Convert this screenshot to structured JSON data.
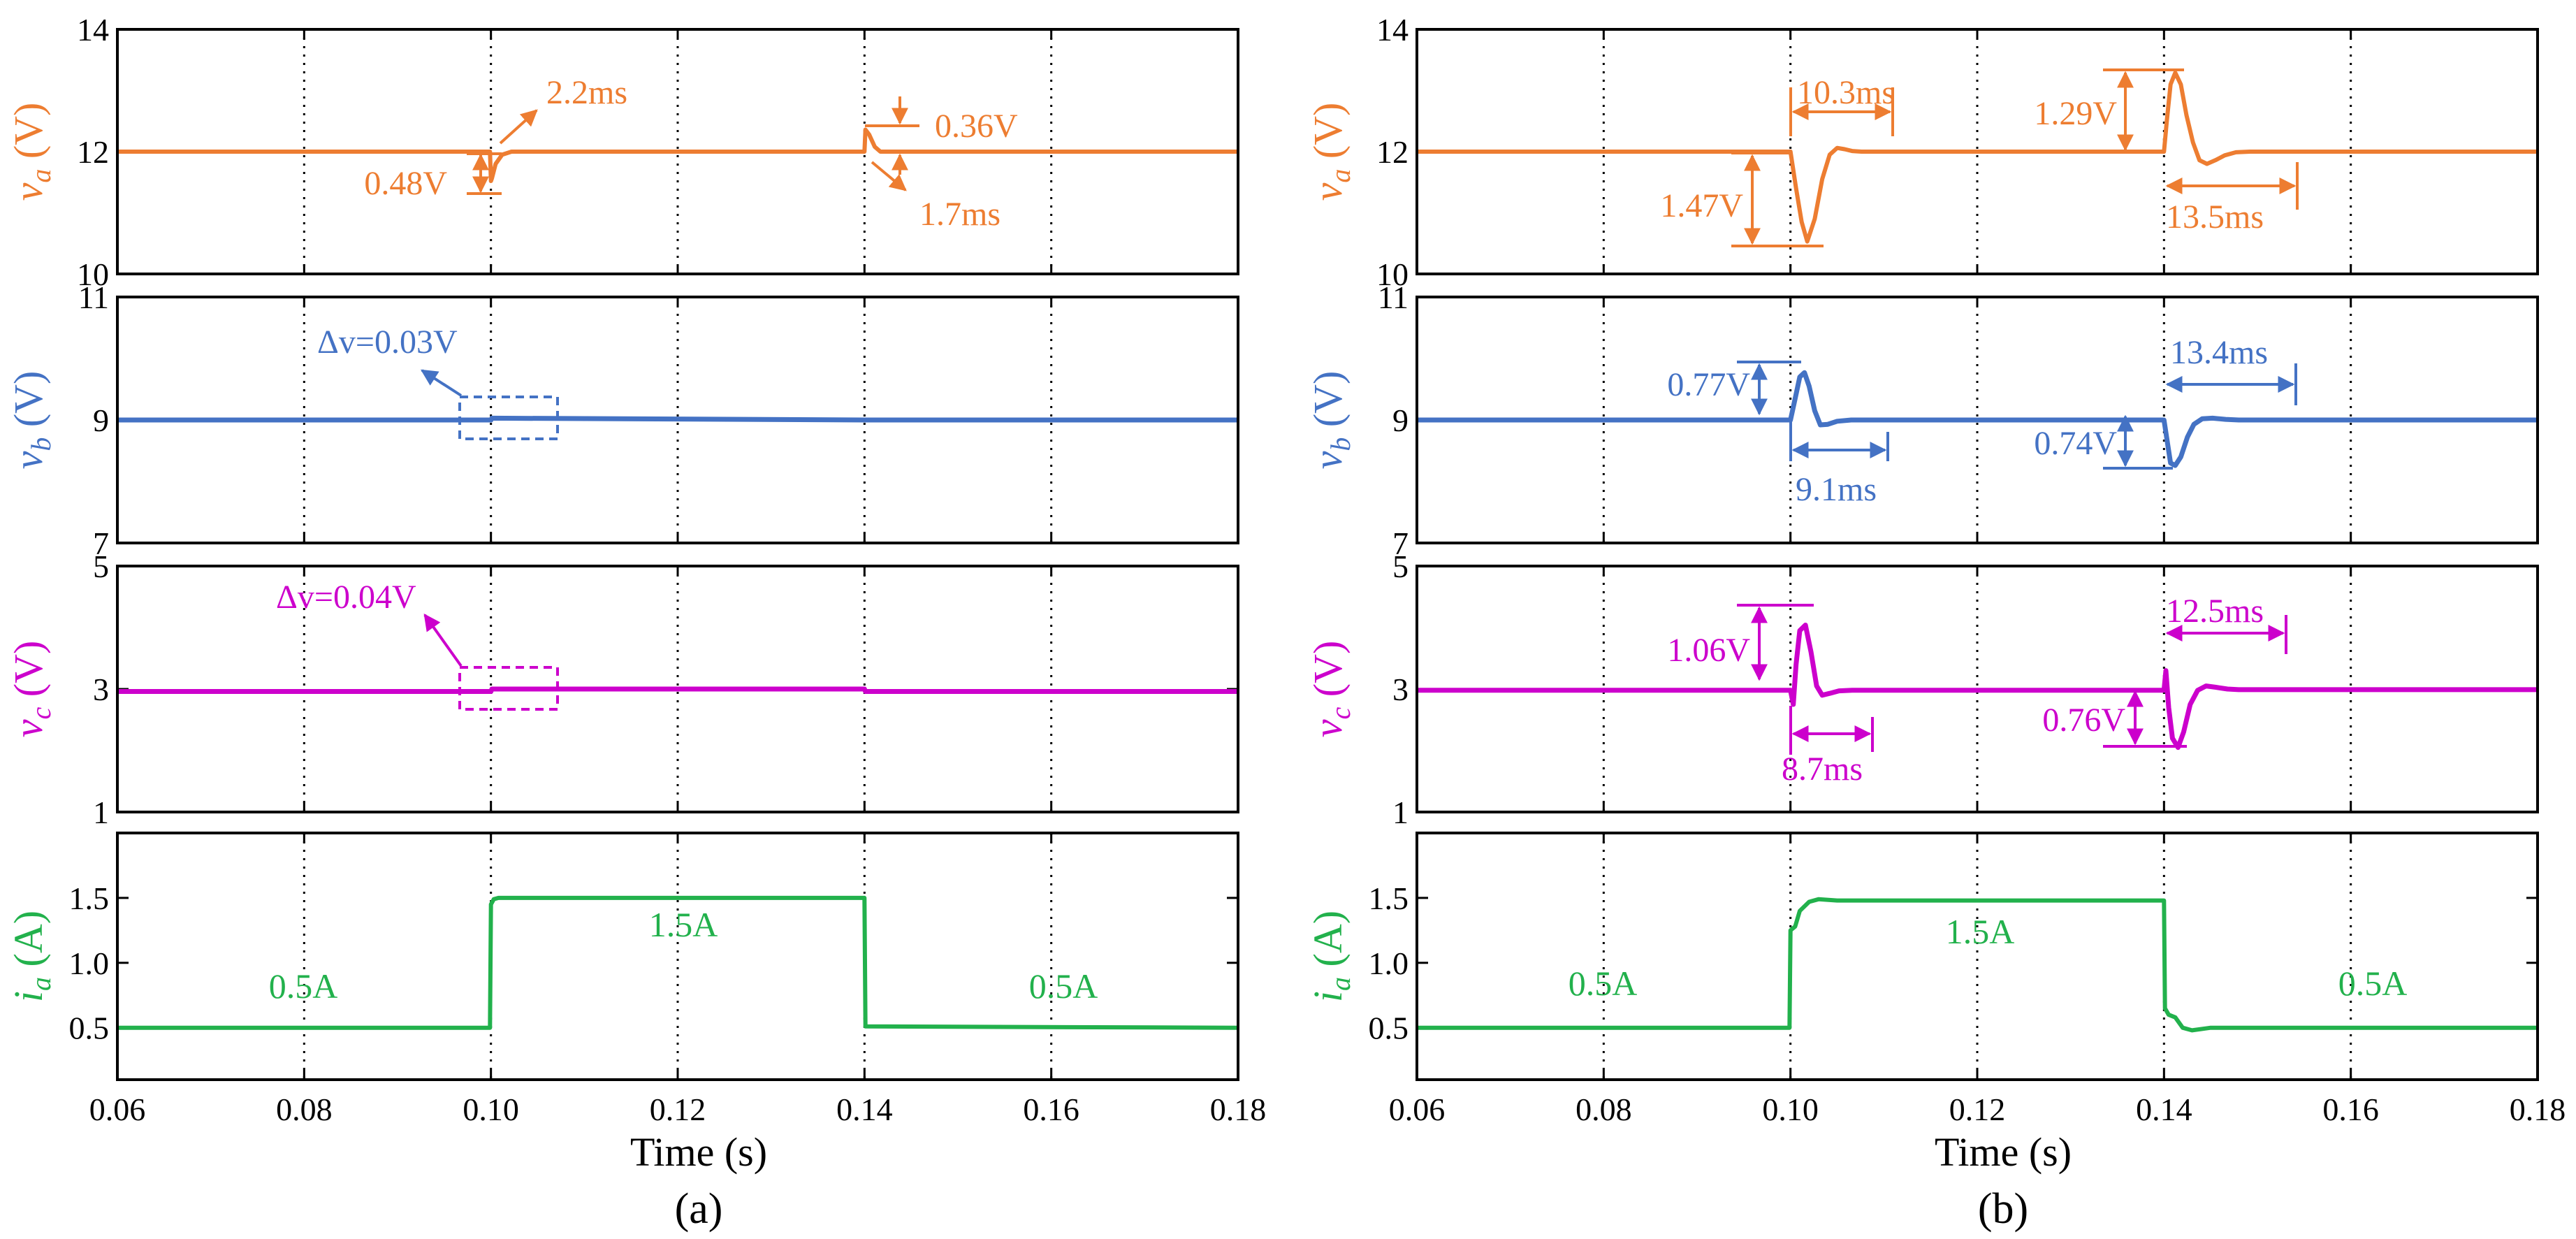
{
  "figure": {
    "panel_labels": [
      "(a)",
      "(b)"
    ],
    "xlabel": "Time (s)",
    "x_ticks": [
      "0.06",
      "0.08",
      "0.10",
      "0.12",
      "0.14",
      "0.16",
      "0.18"
    ]
  },
  "colors": {
    "va": "#ED7D31",
    "vb": "#4472C4",
    "vc": "#CC00CC",
    "ia": "#22B14C",
    "frame": "#000000"
  },
  "chart_data": [
    {
      "type": "line",
      "panel": "(a)",
      "xlim": [
        0.06,
        0.18
      ],
      "xlabel": "Time (s)",
      "subplots": [
        {
          "id": "va",
          "ylabel": "va (V)",
          "ylabel_base": "v",
          "ylabel_sub": "a",
          "ylabel_unit": "(V)",
          "ylim": [
            10,
            14
          ],
          "yticks": [
            "10",
            "12",
            "14"
          ],
          "series": {
            "x": [
              0.06,
              0.0999,
              0.1,
              0.1001,
              0.1005,
              0.1012,
              0.1022,
              0.14,
              0.1401,
              0.1405,
              0.1411,
              0.1417,
              0.18
            ],
            "y": [
              12.0,
              12.0,
              11.52,
              11.56,
              11.8,
              11.95,
              12.0,
              12.0,
              12.36,
              12.28,
              12.08,
              12.0,
              12.0
            ]
          },
          "annotations": [
            "0.48V",
            "2.2ms",
            "0.36V",
            "1.7ms"
          ]
        },
        {
          "id": "vb",
          "ylabel": "vb (V)",
          "ylabel_base": "v",
          "ylabel_sub": "b",
          "ylabel_unit": "(V)",
          "ylim": [
            7,
            11
          ],
          "yticks": [
            "7",
            "9",
            "11"
          ],
          "series": {
            "x": [
              0.06,
              0.1,
              0.1001,
              0.14,
              0.1401,
              0.18
            ],
            "y": [
              9.0,
              9.0,
              9.03,
              9.0,
              9.0,
              9.0
            ]
          },
          "annotations": [
            "Δv=0.03V"
          ]
        },
        {
          "id": "vc",
          "ylabel": "vc (V)",
          "ylabel_base": "v",
          "ylabel_sub": "c",
          "ylabel_unit": "(V)",
          "ylim": [
            1,
            5
          ],
          "yticks": [
            "1",
            "3",
            "5"
          ],
          "series": {
            "x": [
              0.06,
              0.1,
              0.1001,
              0.14,
              0.1401,
              0.18
            ],
            "y": [
              2.96,
              2.96,
              3.0,
              3.0,
              2.96,
              2.96
            ]
          },
          "annotations": [
            "Δv=0.04V"
          ]
        },
        {
          "id": "ia",
          "ylabel": "ia (A)",
          "ylabel_base": "i",
          "ylabel_sub": "a",
          "ylabel_unit": "(A)",
          "ylim": [
            0.1,
            2.0
          ],
          "yticks": [
            "0.5",
            "1.0",
            "1.5"
          ],
          "series": {
            "x": [
              0.06,
              0.0999,
              0.1,
              0.1003,
              0.1008,
              0.14,
              0.1401,
              0.18
            ],
            "y": [
              0.5,
              0.5,
              1.45,
              1.49,
              1.5,
              1.5,
              0.51,
              0.5
            ]
          },
          "annotations": [
            "0.5A",
            "1.5A",
            "0.5A"
          ]
        }
      ]
    },
    {
      "type": "line",
      "panel": "(b)",
      "xlim": [
        0.06,
        0.18
      ],
      "xlabel": "Time (s)",
      "subplots": [
        {
          "id": "va",
          "ylabel": "va (V)",
          "ylabel_base": "v",
          "ylabel_sub": "a",
          "ylabel_unit": "(V)",
          "ylim": [
            10,
            14
          ],
          "yticks": [
            "10",
            "12",
            "14"
          ],
          "series": {
            "x": [
              0.06,
              0.1,
              0.1006,
              0.1012,
              0.1018,
              0.1026,
              0.1034,
              0.1042,
              0.105,
              0.1058,
              0.1066,
              0.1076,
              0.1088,
              0.1103,
              0.14,
              0.1403,
              0.1407,
              0.1412,
              0.1418,
              0.1424,
              0.1431,
              0.1438,
              0.1446,
              0.1455,
              0.1465,
              0.1477,
              0.1492,
              0.1535,
              0.18
            ],
            "y": [
              12.0,
              12.0,
              11.4,
              10.85,
              10.53,
              10.9,
              11.55,
              11.95,
              12.06,
              12.04,
              12.01,
              12.0,
              12.0,
              12.0,
              12.0,
              12.5,
              13.1,
              13.29,
              13.1,
              12.6,
              12.15,
              11.86,
              11.8,
              11.86,
              11.94,
              11.99,
              12.0,
              12.0,
              12.0
            ]
          },
          "annotations": [
            "10.3ms",
            "1.47V",
            "1.29V",
            "13.5ms"
          ]
        },
        {
          "id": "vb",
          "ylabel": "vb (V)",
          "ylabel_base": "v",
          "ylabel_sub": "b",
          "ylabel_unit": "(V)",
          "ylim": [
            7,
            11
          ],
          "yticks": [
            "7",
            "9",
            "11"
          ],
          "series": {
            "x": [
              0.06,
              0.1,
              0.1005,
              0.101,
              0.1015,
              0.102,
              0.1026,
              0.1032,
              0.104,
              0.105,
              0.1065,
              0.1091,
              0.14,
              0.1403,
              0.1407,
              0.1412,
              0.1418,
              0.1425,
              0.1432,
              0.1441,
              0.1452,
              0.1466,
              0.148,
              0.1534,
              0.18
            ],
            "y": [
              9.0,
              9.0,
              9.35,
              9.7,
              9.77,
              9.55,
              9.15,
              8.92,
              8.93,
              8.98,
              9.0,
              9.0,
              9.0,
              8.7,
              8.3,
              8.26,
              8.4,
              8.72,
              8.93,
              9.02,
              9.03,
              9.01,
              9.0,
              9.0,
              9.0
            ]
          },
          "annotations": [
            "0.77V",
            "9.1ms",
            "13.4ms",
            "0.74V"
          ]
        },
        {
          "id": "vc",
          "ylabel": "vc (V)",
          "ylabel_base": "v",
          "ylabel_sub": "c",
          "ylabel_unit": "(V)",
          "ylim": [
            1,
            5
          ],
          "yticks": [
            "1",
            "3",
            "5"
          ],
          "series": {
            "x": [
              0.06,
              0.1,
              0.1003,
              0.1006,
              0.101,
              0.1016,
              0.1022,
              0.1028,
              0.1034,
              0.1042,
              0.1052,
              0.1066,
              0.1087,
              0.14,
              0.1402,
              0.1405,
              0.1409,
              0.1415,
              0.1421,
              0.1428,
              0.1436,
              0.1445,
              0.1455,
              0.1468,
              0.148,
              0.1525,
              0.18
            ],
            "y": [
              2.98,
              2.98,
              2.75,
              3.4,
              3.95,
              4.04,
              3.6,
              3.05,
              2.9,
              2.93,
              2.97,
              2.98,
              2.98,
              2.98,
              3.3,
              2.7,
              2.2,
              2.05,
              2.3,
              2.75,
              2.98,
              3.05,
              3.03,
              3.0,
              2.99,
              2.99,
              2.99
            ]
          },
          "annotations": [
            "1.06V",
            "8.7ms",
            "12.5ms",
            "0.76V"
          ]
        },
        {
          "id": "ia",
          "ylabel": "ia (A)",
          "ylabel_base": "i",
          "ylabel_sub": "a",
          "ylabel_unit": "(A)",
          "ylim": [
            0.1,
            2.0
          ],
          "yticks": [
            "0.5",
            "1.0",
            "1.5"
          ],
          "series": {
            "x": [
              0.06,
              0.0999,
              0.1,
              0.1005,
              0.101,
              0.102,
              0.103,
              0.105,
              0.14,
              0.1401,
              0.1405,
              0.1412,
              0.142,
              0.143,
              0.145,
              0.18
            ],
            "y": [
              0.5,
              0.5,
              1.25,
              1.28,
              1.4,
              1.47,
              1.49,
              1.48,
              1.48,
              0.65,
              0.6,
              0.58,
              0.5,
              0.48,
              0.5,
              0.5
            ]
          },
          "annotations": [
            "0.5A",
            "1.5A",
            "0.5A"
          ]
        }
      ]
    }
  ]
}
